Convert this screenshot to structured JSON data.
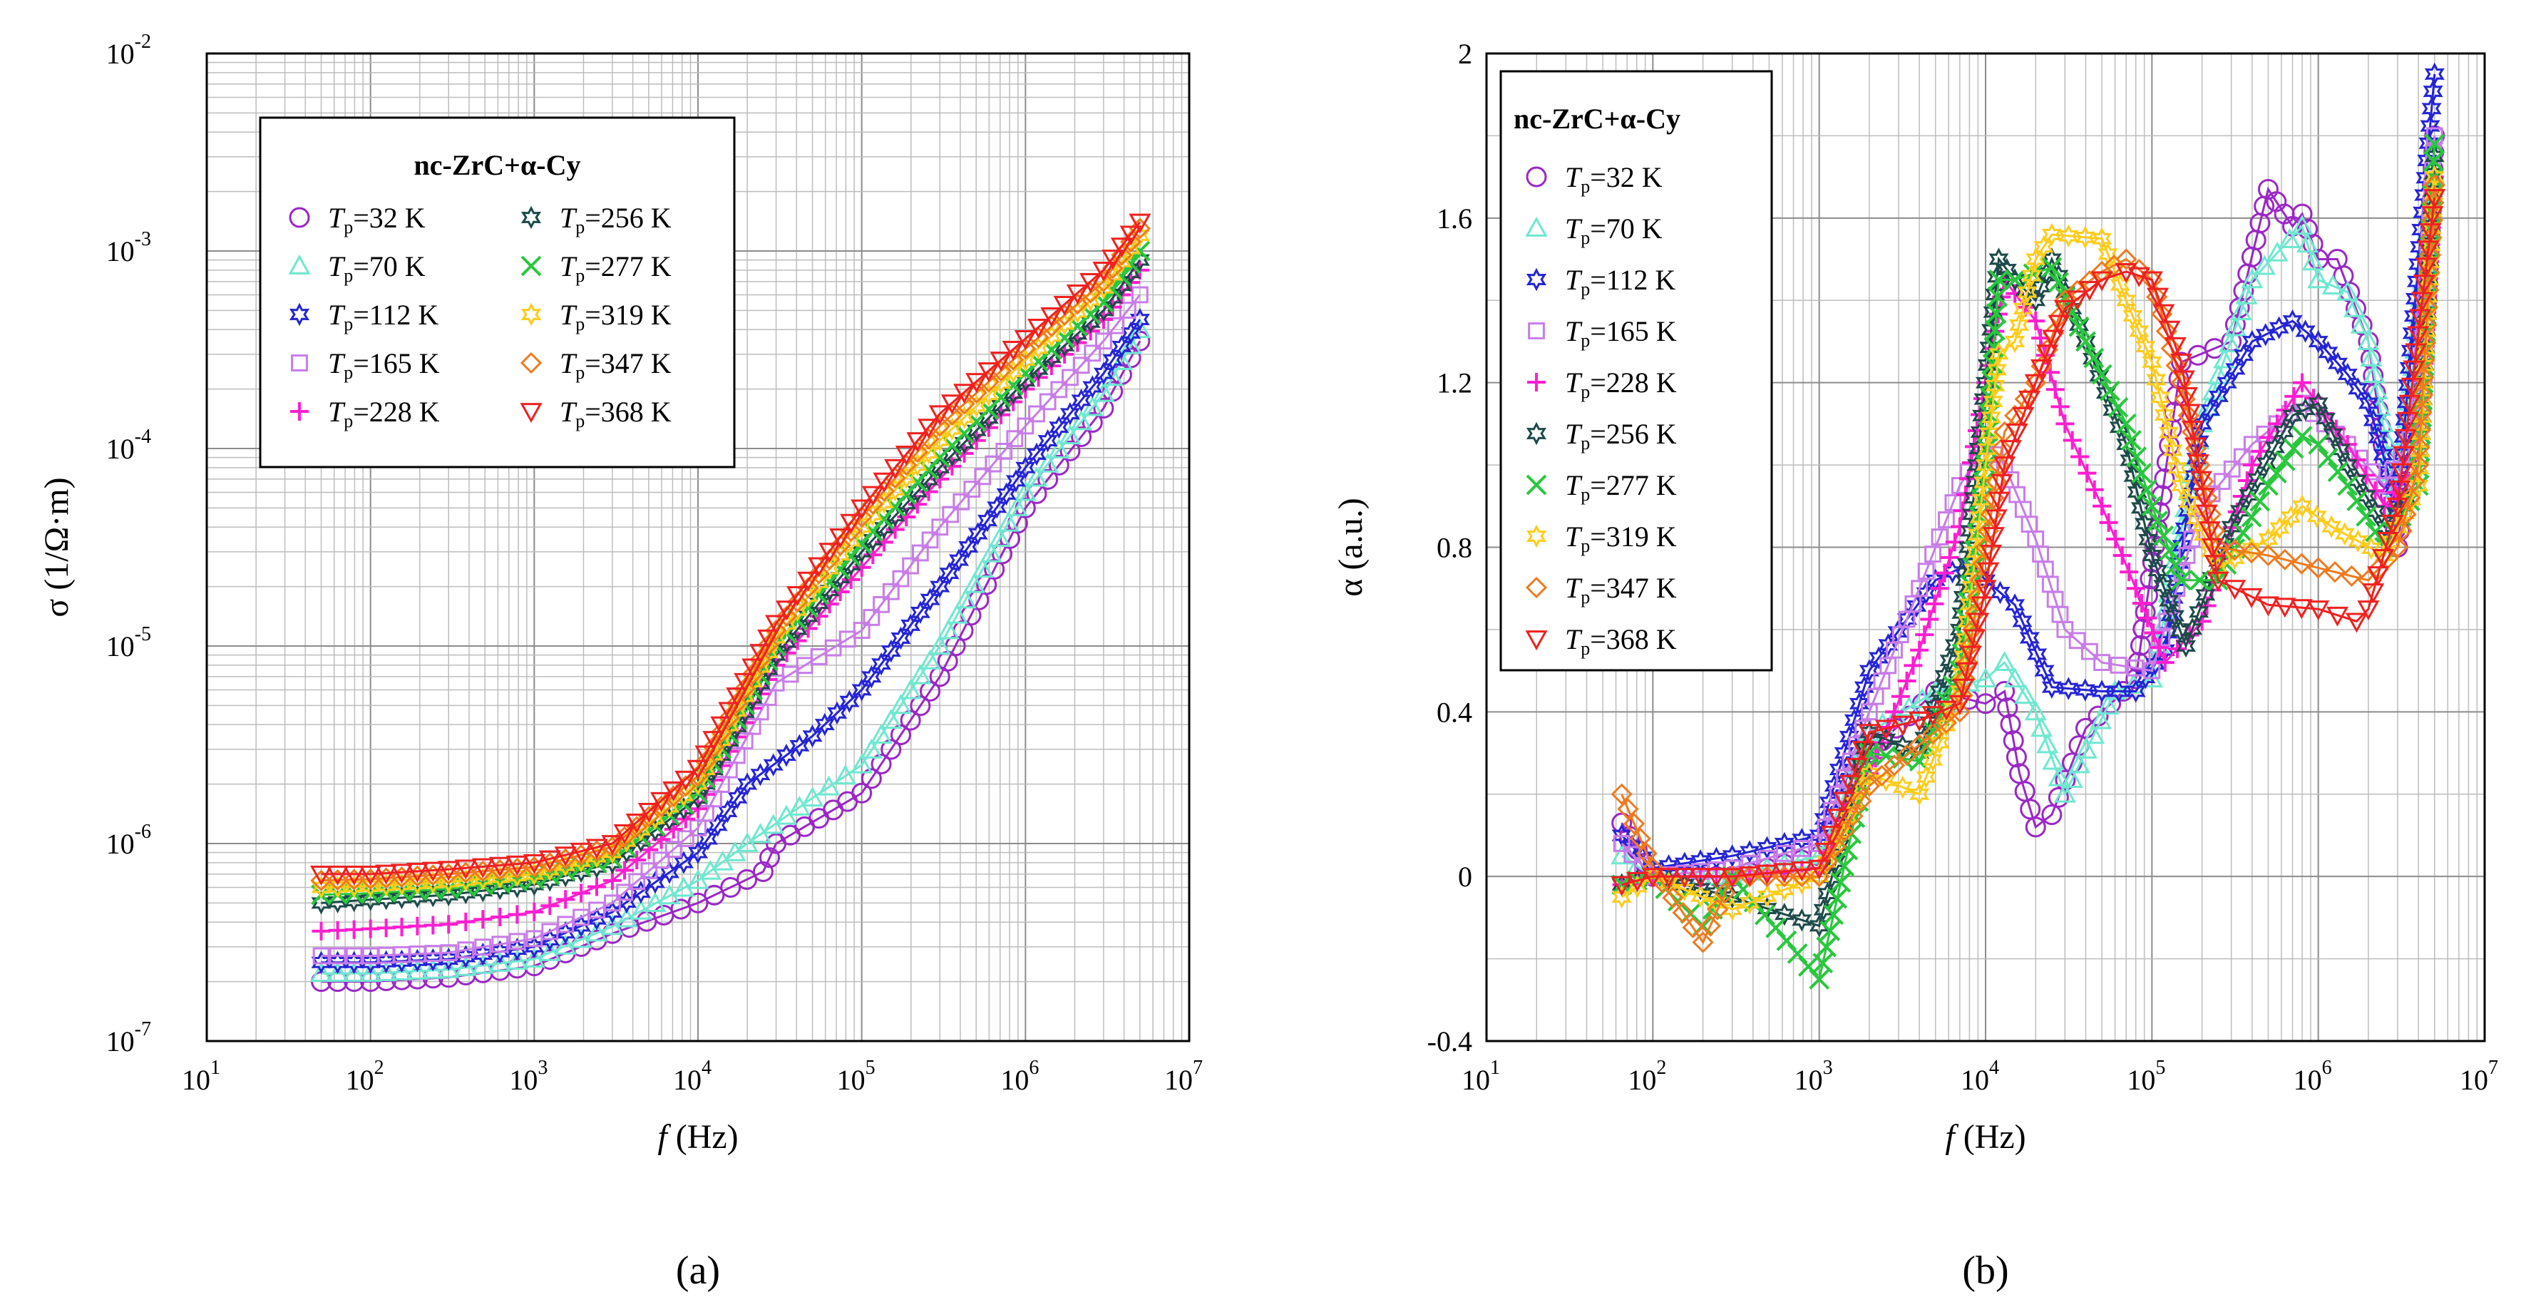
{
  "legend_title": "nc-ZrC+α-Cy",
  "series_meta": [
    {
      "name": "Tp=32 K",
      "temp": "32",
      "color": "#9b27c6",
      "marker": "circle"
    },
    {
      "name": "Tp=70 K",
      "temp": "70",
      "color": "#6ee8d0",
      "marker": "triangle"
    },
    {
      "name": "Tp=112 K",
      "temp": "112",
      "color": "#2424d6",
      "marker": "star"
    },
    {
      "name": "Tp=165 K",
      "temp": "165",
      "color": "#c87ce8",
      "marker": "square"
    },
    {
      "name": "Tp=228 K",
      "temp": "228",
      "color": "#ff1ed0",
      "marker": "plus"
    },
    {
      "name": "Tp=256 K",
      "temp": "256",
      "color": "#1e4a4a",
      "marker": "star"
    },
    {
      "name": "Tp=277 K",
      "temp": "277",
      "color": "#28c83c",
      "marker": "cross"
    },
    {
      "name": "Tp=319 K",
      "temp": "319",
      "color": "#ffcc1a",
      "marker": "star"
    },
    {
      "name": "Tp=347 K",
      "temp": "347",
      "color": "#f07a1e",
      "marker": "diamond"
    },
    {
      "name": "Tp=368 K",
      "temp": "368",
      "color": "#f02020",
      "marker": "dtriangle"
    }
  ],
  "chart_data": [
    {
      "id": "a",
      "type": "line",
      "panel_label": "(a)",
      "title": "",
      "xlabel_italic": "f",
      "xlabel_unit": " (Hz)",
      "ylabel": "σ (1/Ω·m)",
      "xscale": "log",
      "yscale": "log",
      "xlim": [
        10,
        10000000
      ],
      "ylim": [
        1e-07,
        0.01
      ],
      "x_ticks": [
        {
          "base": "10",
          "exp": "1"
        },
        {
          "base": "10",
          "exp": "2"
        },
        {
          "base": "10",
          "exp": "3"
        },
        {
          "base": "10",
          "exp": "4"
        },
        {
          "base": "10",
          "exp": "5"
        },
        {
          "base": "10",
          "exp": "6"
        },
        {
          "base": "10",
          "exp": "7"
        }
      ],
      "y_ticks": [
        {
          "base": "10",
          "exp": "-7"
        },
        {
          "base": "10",
          "exp": "-6"
        },
        {
          "base": "10",
          "exp": "-5"
        },
        {
          "base": "10",
          "exp": "-4"
        },
        {
          "base": "10",
          "exp": "-3"
        },
        {
          "base": "10",
          "exp": "-2"
        }
      ],
      "legend_position": "top-left",
      "series": [
        {
          "name": "Tp=32 K",
          "x": [
            50,
            100,
            300,
            1000,
            3000,
            10000,
            25000,
            30000,
            100000,
            300000,
            1000000,
            3000000,
            5000000
          ],
          "y": [
            2e-07,
            2e-07,
            2.1e-07,
            2.4e-07,
            3.5e-07,
            5e-07,
            7.2e-07,
            1e-06,
            1.8e-06,
            7e-06,
            5e-05,
            0.00016,
            0.00035
          ]
        },
        {
          "name": "Tp=70 K",
          "x": [
            50,
            100,
            300,
            1000,
            3000,
            10000,
            20000,
            50000,
            100000,
            300000,
            1000000,
            3000000,
            5000000
          ],
          "y": [
            2.2e-07,
            2.2e-07,
            2.3e-07,
            2.6e-07,
            3.8e-07,
            6.5e-07,
            1e-06,
            1.7e-06,
            2.5e-06,
            1e-05,
            6e-05,
            0.00019,
            0.0004
          ]
        },
        {
          "name": "Tp=112 K",
          "x": [
            50,
            100,
            300,
            1000,
            3000,
            10000,
            20000,
            50000,
            100000,
            300000,
            1000000,
            3000000,
            5000000
          ],
          "y": [
            2.5e-07,
            2.5e-07,
            2.6e-07,
            3e-07,
            4.5e-07,
            9e-07,
            2e-06,
            3.5e-06,
            6e-06,
            2e-05,
            8e-05,
            0.00024,
            0.00045
          ]
        },
        {
          "name": "Tp=165 K",
          "x": [
            50,
            100,
            300,
            1000,
            3000,
            10000,
            30000,
            100000,
            300000,
            1000000,
            3000000,
            5000000
          ],
          "y": [
            2.7e-07,
            2.7e-07,
            2.8e-07,
            3.3e-07,
            5e-07,
            1.2e-06,
            6.5e-06,
            1.2e-05,
            4e-05,
            0.00013,
            0.00035,
            0.0006
          ]
        },
        {
          "name": "Tp=228 K",
          "x": [
            50,
            100,
            300,
            1000,
            3000,
            10000,
            30000,
            100000,
            300000,
            1000000,
            3000000,
            5000000
          ],
          "y": [
            3.6e-07,
            3.7e-07,
            3.9e-07,
            4.5e-07,
            6.5e-07,
            1.5e-06,
            8e-06,
            2.5e-05,
            7e-05,
            0.0002,
            0.00045,
            0.0008
          ]
        },
        {
          "name": "Tp=256 K",
          "x": [
            50,
            100,
            300,
            1000,
            3000,
            10000,
            30000,
            100000,
            300000,
            1000000,
            3000000,
            5000000
          ],
          "y": [
            5e-07,
            5.2e-07,
            5.5e-07,
            6.2e-07,
            8e-07,
            1.7e-06,
            9e-06,
            3e-05,
            8e-05,
            0.00022,
            0.0005,
            0.0009
          ]
        },
        {
          "name": "Tp=277 K",
          "x": [
            50,
            100,
            300,
            1000,
            3000,
            10000,
            30000,
            100000,
            300000,
            1000000,
            3000000,
            5000000
          ],
          "y": [
            5.5e-07,
            5.6e-07,
            5.9e-07,
            6.6e-07,
            8.4e-07,
            1.8e-06,
            1e-05,
            3.3e-05,
            9e-05,
            0.00024,
            0.00055,
            0.001
          ]
        },
        {
          "name": "Tp=319 K",
          "x": [
            50,
            100,
            300,
            1000,
            3000,
            10000,
            30000,
            100000,
            300000,
            1000000,
            3000000,
            5000000
          ],
          "y": [
            6e-07,
            6.1e-07,
            6.4e-07,
            7e-07,
            9e-07,
            2e-06,
            1.1e-05,
            4e-05,
            0.00011,
            0.00028,
            0.00065,
            0.0012
          ]
        },
        {
          "name": "Tp=347 K",
          "x": [
            50,
            100,
            300,
            1000,
            3000,
            10000,
            30000,
            100000,
            300000,
            1000000,
            3000000,
            5000000
          ],
          "y": [
            6.5e-07,
            6.6e-07,
            7e-07,
            7.6e-07,
            9.6e-07,
            2.2e-06,
            1.2e-05,
            4.5e-05,
            0.00013,
            0.00032,
            0.0007,
            0.0013
          ]
        },
        {
          "name": "Tp=368 K",
          "x": [
            50,
            100,
            300,
            1000,
            3000,
            10000,
            30000,
            100000,
            300000,
            1000000,
            3000000,
            5000000
          ],
          "y": [
            7e-07,
            7e-07,
            7.4e-07,
            8e-07,
            1e-06,
            2.4e-06,
            1.3e-05,
            5e-05,
            0.00015,
            0.00036,
            0.0008,
            0.0014
          ]
        }
      ]
    },
    {
      "id": "b",
      "type": "line",
      "panel_label": "(b)",
      "title": "",
      "xlabel_italic": "f",
      "xlabel_unit": " (Hz)",
      "ylabel": "α (a.u.)",
      "xscale": "log",
      "yscale": "linear",
      "xlim": [
        10,
        10000000
      ],
      "ylim": [
        -0.4,
        2
      ],
      "x_ticks": [
        {
          "base": "10",
          "exp": "1"
        },
        {
          "base": "10",
          "exp": "2"
        },
        {
          "base": "10",
          "exp": "3"
        },
        {
          "base": "10",
          "exp": "4"
        },
        {
          "base": "10",
          "exp": "5"
        },
        {
          "base": "10",
          "exp": "6"
        },
        {
          "base": "10",
          "exp": "7"
        }
      ],
      "y_ticks": [
        {
          "value": -0.4,
          "label": "-0.4"
        },
        {
          "value": 0,
          "label": "0"
        },
        {
          "value": 0.4,
          "label": "0.4"
        },
        {
          "value": 0.8,
          "label": "0.8"
        },
        {
          "value": 1.2,
          "label": "1.2"
        },
        {
          "value": 1.6,
          "label": "1.6"
        },
        {
          "value": 2,
          "label": "2"
        }
      ],
      "legend_position": "top-left",
      "series": [
        {
          "name": "Tp=32 K",
          "x": [
            65,
            100,
            300,
            1000,
            2000,
            5000,
            10000,
            13000,
            16000,
            20000,
            25000,
            40000,
            80000,
            150000,
            300000,
            500000,
            700000,
            800000,
            1000000,
            1300000,
            2000000,
            3000000,
            4500000,
            5000000
          ],
          "y": [
            0.13,
            0.0,
            0.0,
            0.05,
            0.3,
            0.45,
            0.42,
            0.45,
            0.25,
            0.12,
            0.15,
            0.36,
            0.48,
            1.25,
            1.3,
            1.67,
            1.58,
            1.61,
            1.5,
            1.5,
            1.3,
            0.8,
            1.4,
            1.8
          ]
        },
        {
          "name": "Tp=70 K",
          "x": [
            65,
            100,
            300,
            1000,
            2000,
            5000,
            10000,
            13000,
            20000,
            30000,
            60000,
            100000,
            200000,
            400000,
            800000,
            1000000,
            1500000,
            2000000,
            3000000,
            5000000
          ],
          "y": [
            0.05,
            0.0,
            0.0,
            0.05,
            0.35,
            0.45,
            0.48,
            0.52,
            0.4,
            0.2,
            0.45,
            0.48,
            1.1,
            1.45,
            1.58,
            1.45,
            1.42,
            1.3,
            0.9,
            1.7
          ]
        },
        {
          "name": "Tp=112 K",
          "x": [
            65,
            100,
            300,
            1000,
            2000,
            5000,
            8000,
            10000,
            15000,
            25000,
            50000,
            80000,
            120000,
            200000,
            400000,
            700000,
            1000000,
            1500000,
            2000000,
            3000000,
            5000000
          ],
          "y": [
            0.1,
            0.02,
            0.05,
            0.1,
            0.5,
            0.72,
            0.76,
            0.72,
            0.66,
            0.46,
            0.45,
            0.45,
            0.55,
            1.1,
            1.3,
            1.35,
            1.3,
            1.22,
            1.15,
            0.9,
            1.95
          ]
        },
        {
          "name": "Tp=165 K",
          "x": [
            65,
            100,
            300,
            1000,
            2000,
            4000,
            7000,
            10000,
            13000,
            20000,
            30000,
            50000,
            100000,
            200000,
            400000,
            800000,
            1500000,
            2500000,
            4000000,
            5000000
          ],
          "y": [
            0.08,
            0.0,
            0.02,
            0.08,
            0.4,
            0.7,
            0.95,
            1.05,
            1.0,
            0.82,
            0.6,
            0.52,
            0.5,
            0.9,
            1.05,
            1.15,
            1.05,
            0.95,
            1.1,
            1.8
          ]
        },
        {
          "name": "Tp=228 K",
          "x": [
            65,
            100,
            300,
            1000,
            2000,
            4000,
            7000,
            10000,
            13000,
            20000,
            30000,
            50000,
            80000,
            120000,
            200000,
            400000,
            800000,
            1500000,
            2500000,
            4000000,
            5000000
          ],
          "y": [
            -0.02,
            0.0,
            0.0,
            0.02,
            0.25,
            0.55,
            0.85,
            1.2,
            1.45,
            1.35,
            1.1,
            0.9,
            0.7,
            0.52,
            0.62,
            1.0,
            1.2,
            1.05,
            0.9,
            1.0,
            1.7
          ]
        },
        {
          "name": "Tp=256 K",
          "x": [
            65,
            100,
            300,
            1000,
            2000,
            4000,
            7000,
            10000,
            12000,
            15000,
            20000,
            25000,
            40000,
            70000,
            100000,
            160000,
            300000,
            700000,
            1000000,
            1500000,
            2500000,
            4000000,
            5000000
          ],
          "y": [
            -0.02,
            0.0,
            -0.05,
            -0.12,
            0.35,
            0.3,
            0.6,
            1.2,
            1.5,
            1.45,
            1.4,
            1.5,
            1.3,
            1.05,
            0.78,
            0.56,
            0.85,
            1.12,
            1.15,
            1.0,
            0.85,
            0.95,
            1.75
          ]
        },
        {
          "name": "Tp=277 K",
          "x": [
            65,
            100,
            200,
            300,
            1000,
            2000,
            4000,
            7000,
            10000,
            12000,
            15000,
            25000,
            40000,
            70000,
            100000,
            150000,
            250000,
            500000,
            800000,
            1000000,
            1500000,
            2500000,
            4000000,
            5000000
          ],
          "y": [
            -0.02,
            0.0,
            -0.12,
            0.0,
            -0.25,
            0.3,
            0.28,
            0.5,
            1.0,
            1.45,
            1.45,
            1.48,
            1.3,
            1.1,
            0.9,
            0.72,
            0.72,
            0.95,
            1.07,
            1.05,
            0.95,
            0.8,
            0.95,
            1.78
          ]
        },
        {
          "name": "Tp=319 K",
          "x": [
            65,
            100,
            300,
            1000,
            2000,
            4000,
            7000,
            10000,
            12000,
            15000,
            20000,
            25000,
            50000,
            70000,
            100000,
            150000,
            250000,
            500000,
            800000,
            1200000,
            2500000,
            4000000,
            5000000
          ],
          "y": [
            -0.05,
            0.0,
            -0.08,
            0.0,
            0.25,
            0.2,
            0.45,
            1.0,
            1.27,
            1.3,
            1.5,
            1.56,
            1.55,
            1.4,
            1.25,
            0.95,
            0.75,
            0.82,
            0.9,
            0.85,
            0.78,
            0.95,
            1.7
          ]
        },
        {
          "name": "Tp=347 K",
          "x": [
            65,
            100,
            200,
            300,
            1000,
            2000,
            4000,
            7000,
            10000,
            13000,
            20000,
            30000,
            50000,
            70000,
            100000,
            150000,
            250000,
            500000,
            1000000,
            2000000,
            3000000,
            4000000,
            5000000
          ],
          "y": [
            0.2,
            0.02,
            -0.16,
            0.0,
            0.0,
            0.22,
            0.32,
            0.4,
            0.8,
            1.08,
            1.2,
            1.4,
            1.47,
            1.5,
            1.45,
            1.2,
            0.8,
            0.78,
            0.75,
            0.72,
            0.8,
            1.0,
            1.68
          ]
        },
        {
          "name": "Tp=368 K",
          "x": [
            65,
            100,
            300,
            1000,
            2000,
            4000,
            7000,
            10000,
            13000,
            20000,
            30000,
            50000,
            70000,
            100000,
            150000,
            250000,
            500000,
            1000000,
            1700000,
            2000000,
            3000000,
            5000000
          ],
          "y": [
            -0.02,
            0.0,
            0.0,
            0.02,
            0.35,
            0.38,
            0.42,
            0.7,
            1.0,
            1.2,
            1.38,
            1.45,
            1.47,
            1.45,
            1.25,
            0.72,
            0.66,
            0.65,
            0.62,
            0.65,
            0.9,
            1.65
          ]
        }
      ]
    }
  ]
}
